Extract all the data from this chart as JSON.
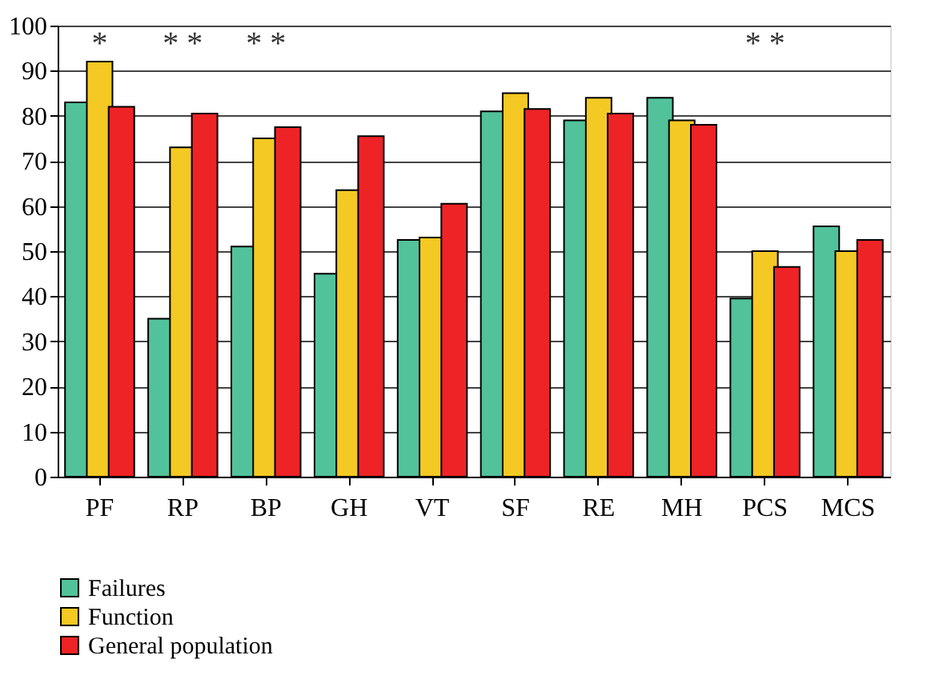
{
  "chart_data": {
    "type": "bar",
    "categories": [
      "PF",
      "RP",
      "BP",
      "GH",
      "VT",
      "SF",
      "RE",
      "MH",
      "PCS",
      "MCS"
    ],
    "series": [
      {
        "name": "Failures",
        "color": "#52c29a",
        "values": [
          83,
          35,
          51,
          45,
          52.5,
          81,
          79,
          84,
          39.5,
          55.5
        ]
      },
      {
        "name": "Function",
        "color": "#f5c923",
        "values": [
          92,
          73,
          75,
          63.5,
          53,
          85,
          84,
          79,
          50,
          50
        ]
      },
      {
        "name": "General population",
        "color": "#ee2326",
        "values": [
          82,
          80.5,
          77.5,
          75.5,
          60.5,
          81.5,
          80.5,
          78,
          46.5,
          52.5
        ]
      }
    ],
    "ylim": [
      0,
      100
    ],
    "yticks": [
      0,
      10,
      20,
      30,
      40,
      50,
      60,
      70,
      80,
      90,
      100
    ],
    "grid": "y",
    "legend": "bottom",
    "annotations": [
      "*",
      "* *",
      "* *",
      "* *"
    ]
  }
}
